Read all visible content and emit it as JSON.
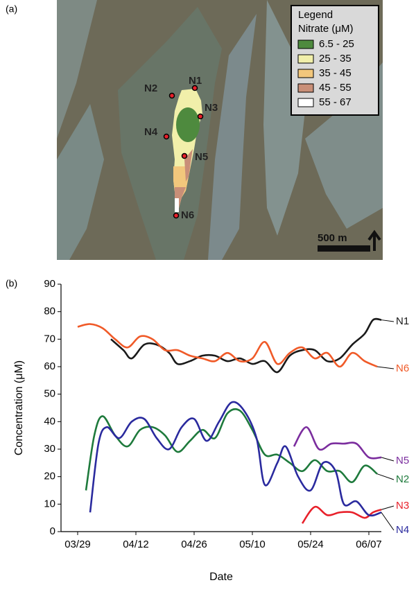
{
  "panel_labels": [
    "(a)",
    "(b)"
  ],
  "map": {
    "legend_title": "Legend",
    "legend_subtitle": "Nitrate (μM)",
    "legend_items": [
      {
        "label": "6.5 - 25",
        "color": "#4e8a3e"
      },
      {
        "label": "25 - 35",
        "color": "#f1efaa"
      },
      {
        "label": "35 - 45",
        "color": "#f2c77c"
      },
      {
        "label": "45 - 55",
        "color": "#c98f78"
      },
      {
        "label": "55 - 67",
        "color": "#ffffff"
      }
    ],
    "nodes": [
      "N1",
      "N2",
      "N3",
      "N4",
      "N5",
      "N6"
    ],
    "scale_bar": "500 m"
  },
  "chart_data": {
    "type": "line",
    "xlabel": "Date",
    "ylabel": "Concentration (μM)",
    "xlim": [
      "03/25",
      "06/10"
    ],
    "xticks": [
      "03/29",
      "04/12",
      "04/26",
      "05/10",
      "05/24",
      "06/07"
    ],
    "ylim": [
      0,
      90
    ],
    "yticks": [
      0,
      10,
      20,
      30,
      40,
      50,
      60,
      70,
      80,
      90
    ],
    "series": [
      {
        "name": "N1",
        "color": "#1a1a1a",
        "x": [
          "04/06",
          "04/09",
          "04/11",
          "04/14",
          "04/17",
          "04/20",
          "04/22",
          "04/25",
          "04/28",
          "05/01",
          "05/04",
          "05/07",
          "05/10",
          "05/13",
          "05/16",
          "05/19",
          "05/22",
          "05/25",
          "05/28",
          "05/31",
          "06/03",
          "06/06",
          "06/08",
          "06/10"
        ],
        "values": [
          70,
          66,
          63,
          68,
          68,
          65,
          61,
          62,
          64,
          64,
          62,
          63,
          61,
          62,
          58,
          64,
          66,
          66,
          62,
          63,
          68,
          72,
          77,
          77
        ]
      },
      {
        "name": "N6",
        "color": "#f05a28",
        "x": [
          "03/29",
          "04/01",
          "04/04",
          "04/07",
          "04/10",
          "04/13",
          "04/16",
          "04/19",
          "04/22",
          "04/25",
          "04/28",
          "05/01",
          "05/04",
          "05/07",
          "05/10",
          "05/13",
          "05/16",
          "05/19",
          "05/22",
          "05/25",
          "05/28",
          "05/31",
          "06/03",
          "06/06",
          "06/09"
        ],
        "values": [
          74.5,
          75.5,
          74,
          70,
          67,
          71,
          70,
          66,
          66,
          64,
          63,
          62,
          65,
          62,
          63,
          69,
          61,
          65,
          67,
          63,
          65,
          60,
          65,
          62,
          60
        ]
      },
      {
        "name": "N5",
        "color": "#7b2d9e",
        "x": [
          "05/20",
          "05/23",
          "05/26",
          "05/29",
          "06/01",
          "06/04",
          "06/07",
          "06/10"
        ],
        "values": [
          31,
          38,
          30,
          32,
          32,
          32,
          27,
          27
        ]
      },
      {
        "name": "N2",
        "color": "#1e7a3c",
        "x": [
          "03/31",
          "04/02",
          "04/04",
          "04/07",
          "04/10",
          "04/13",
          "04/16",
          "04/19",
          "04/22",
          "04/25",
          "04/28",
          "05/01",
          "05/04",
          "05/07",
          "05/10",
          "05/13",
          "05/16",
          "05/19",
          "05/22",
          "05/25",
          "05/28",
          "05/31",
          "06/03",
          "06/06",
          "06/09"
        ],
        "values": [
          15,
          35,
          42,
          35,
          31,
          37,
          38,
          35,
          29,
          33,
          37,
          34,
          43,
          44,
          37,
          28,
          28,
          25,
          22,
          26,
          22,
          22,
          18,
          24,
          21
        ]
      },
      {
        "name": "N3",
        "color": "#e8202a",
        "x": [
          "05/22",
          "05/25",
          "05/28",
          "05/31",
          "06/03",
          "06/06",
          "06/08",
          "06/10"
        ],
        "values": [
          3,
          9,
          6,
          7,
          7,
          5,
          7,
          8
        ]
      },
      {
        "name": "N4",
        "color": "#2a2a9e",
        "x": [
          "04/01",
          "04/03",
          "04/05",
          "04/08",
          "04/11",
          "04/14",
          "04/17",
          "04/20",
          "04/23",
          "04/26",
          "04/29",
          "05/02",
          "05/05",
          "05/08",
          "05/11",
          "05/13",
          "05/16",
          "05/18",
          "05/21",
          "05/24",
          "05/27",
          "05/30",
          "06/01",
          "06/04",
          "06/07",
          "06/10"
        ],
        "values": [
          7,
          32,
          38,
          34,
          40,
          41,
          34,
          30,
          38,
          41,
          33,
          40,
          47,
          44,
          34,
          17,
          25,
          31,
          20,
          15,
          25,
          22,
          10,
          11,
          6,
          7
        ]
      }
    ]
  }
}
